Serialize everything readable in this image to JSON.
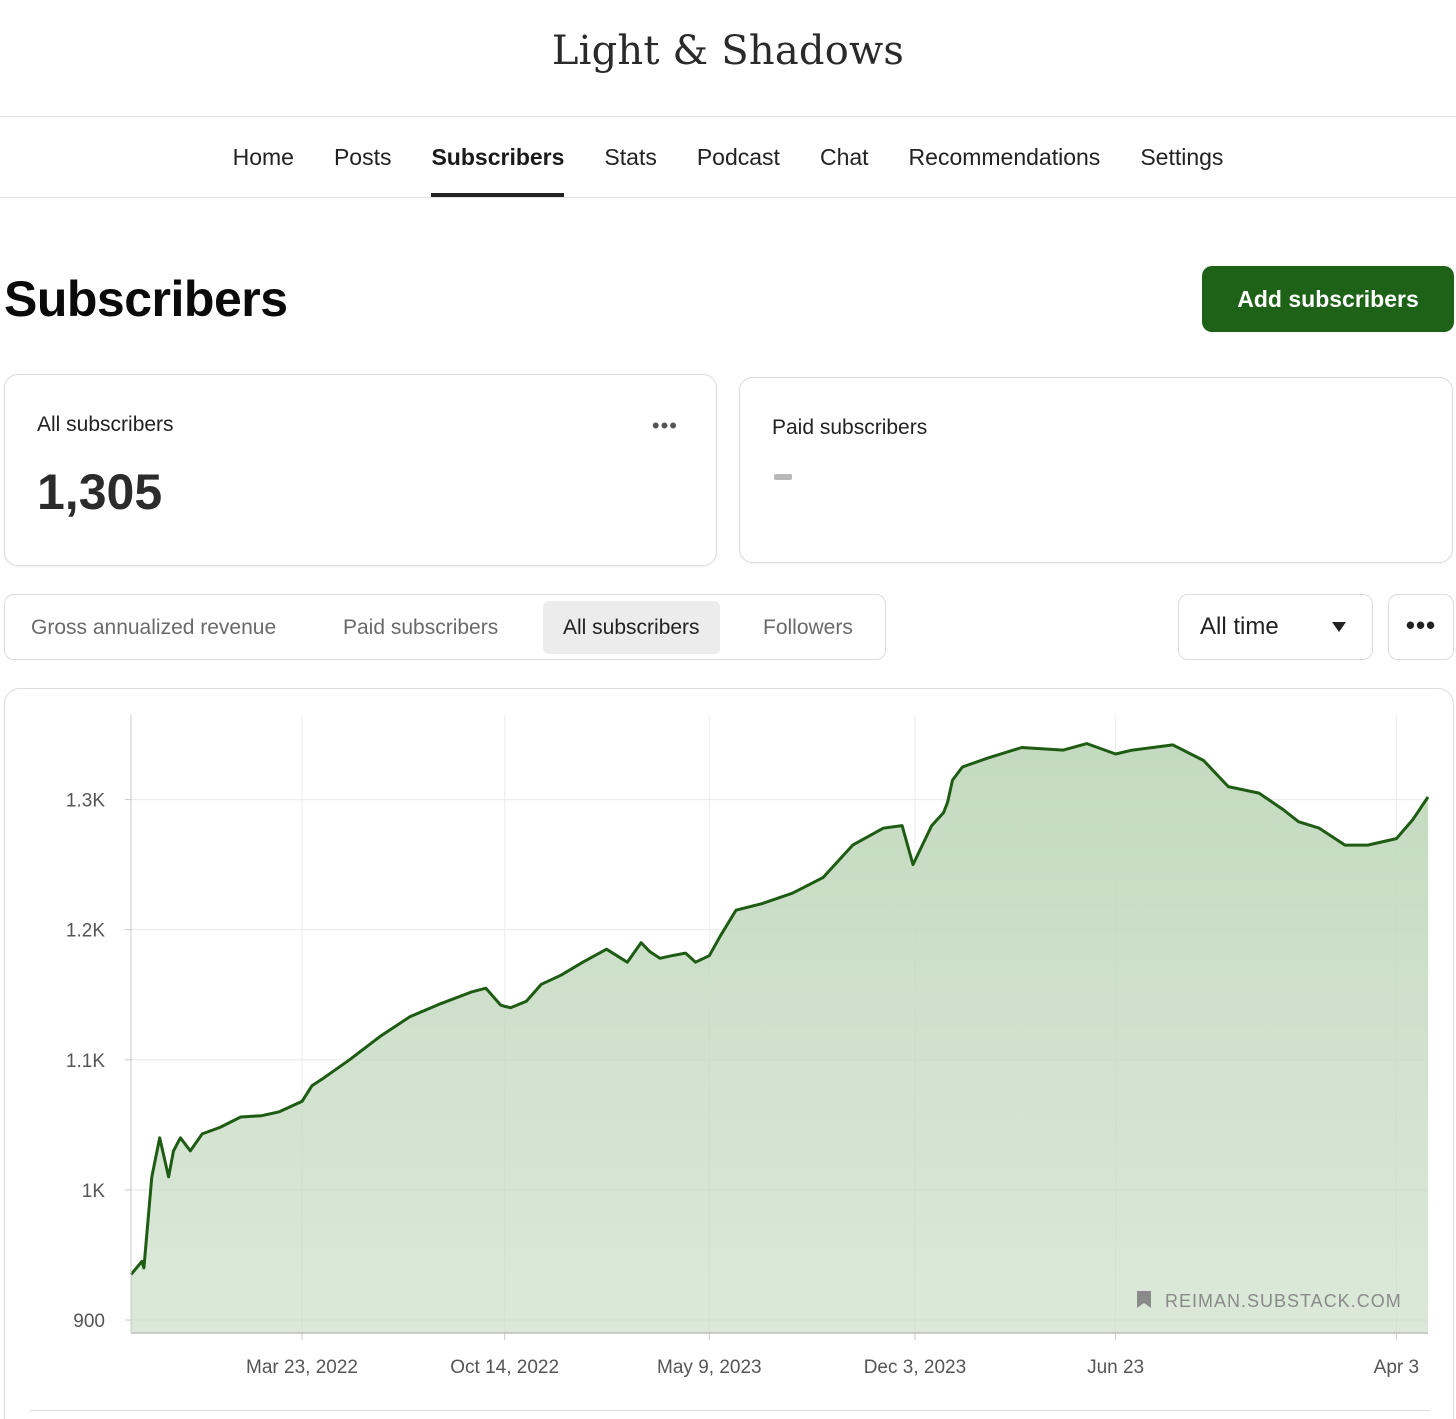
{
  "site": {
    "title": "Light & Shadows"
  },
  "nav": {
    "items": [
      "Home",
      "Posts",
      "Subscribers",
      "Stats",
      "Podcast",
      "Chat",
      "Recommendations",
      "Settings"
    ],
    "active": "Subscribers"
  },
  "header": {
    "title": "Subscribers",
    "add_button": "Add subscribers"
  },
  "cards": {
    "all": {
      "label": "All subscribers",
      "value": "1,305",
      "menu_icon": "ellipsis-icon"
    },
    "paid": {
      "label": "Paid subscribers",
      "value": "-"
    }
  },
  "tabs": {
    "items": [
      "Gross annualized revenue",
      "Paid subscribers",
      "All subscribers",
      "Followers"
    ],
    "active": "All subscribers"
  },
  "range": {
    "selected": "All time"
  },
  "more_menu_icon": "ellipsis-icon",
  "watermark": {
    "text": "REIMAN.SUBSTACK.COM",
    "icon": "bookmark-icon"
  },
  "colors": {
    "accent": "#1e6218",
    "line": "#1e5c14",
    "area": "#c4dac0"
  },
  "chart_data": {
    "type": "area",
    "series": [
      {
        "x": [
          "2021-10-01",
          "2021-10-12",
          "2021-10-14",
          "2021-10-22",
          "2021-10-30",
          "2021-11-08",
          "2021-11-13",
          "2021-11-20",
          "2021-11-30",
          "2021-12-12",
          "2021-12-30",
          "2022-01-20",
          "2022-02-10",
          "2022-02-28",
          "2022-03-23",
          "2022-04-02",
          "2022-04-12",
          "2022-05-10",
          "2022-06-10",
          "2022-07-10",
          "2022-08-10",
          "2022-09-10",
          "2022-09-25",
          "2022-10-10",
          "2022-10-14",
          "2022-10-20",
          "2022-11-05",
          "2022-11-20",
          "2022-12-10",
          "2023-01-01",
          "2023-01-25",
          "2023-02-15",
          "2023-03-01",
          "2023-03-10",
          "2023-03-20",
          "2023-04-01",
          "2023-04-15",
          "2023-04-25",
          "2023-05-09",
          "2023-05-20",
          "2023-06-05",
          "2023-07-01",
          "2023-08-01",
          "2023-09-01",
          "2023-10-01",
          "2023-11-01",
          "2023-11-20",
          "2023-12-01",
          "2023-12-20",
          "2024-01-01",
          "2024-01-05",
          "2024-01-10",
          "2024-01-20",
          "2024-02-15",
          "2024-03-20",
          "2024-05-01",
          "2024-05-25",
          "2024-06-23",
          "2024-07-10",
          "2024-08-20",
          "2024-09-20",
          "2024-10-15",
          "2024-11-15",
          "2024-12-10",
          "2024-12-25",
          "2025-01-15",
          "2025-02-10",
          "2025-03-05",
          "2025-04-03",
          "2025-04-20",
          "2025-05-05"
        ],
        "y": [
          935,
          945,
          940,
          1010,
          1040,
          1010,
          1030,
          1040,
          1030,
          1043,
          1048,
          1056,
          1057,
          1060,
          1068,
          1080,
          1085,
          1100,
          1118,
          1133,
          1143,
          1152,
          1155,
          1142,
          1141,
          1140,
          1145,
          1158,
          1165,
          1175,
          1185,
          1175,
          1190,
          1183,
          1178,
          1180,
          1182,
          1175,
          1180,
          1195,
          1215,
          1220,
          1228,
          1240,
          1265,
          1278,
          1280,
          1250,
          1280,
          1290,
          1298,
          1315,
          1325,
          1332,
          1340,
          1338,
          1343,
          1335,
          1338,
          1342,
          1330,
          1310,
          1305,
          1292,
          1283,
          1278,
          1265,
          1265,
          1270,
          1285,
          1302
        ]
      }
    ],
    "y_ticks": [
      "900",
      "1K",
      "1.1K",
      "1.2K",
      "1.3K"
    ],
    "x_ticks": [
      "Mar 23, 2022",
      "Oct 14, 2022",
      "May 9, 2023",
      "Dec 3, 2023",
      "Jun 23",
      "Apr 3"
    ],
    "ylim": [
      890,
      1365
    ],
    "grid": true,
    "legend": "none"
  }
}
